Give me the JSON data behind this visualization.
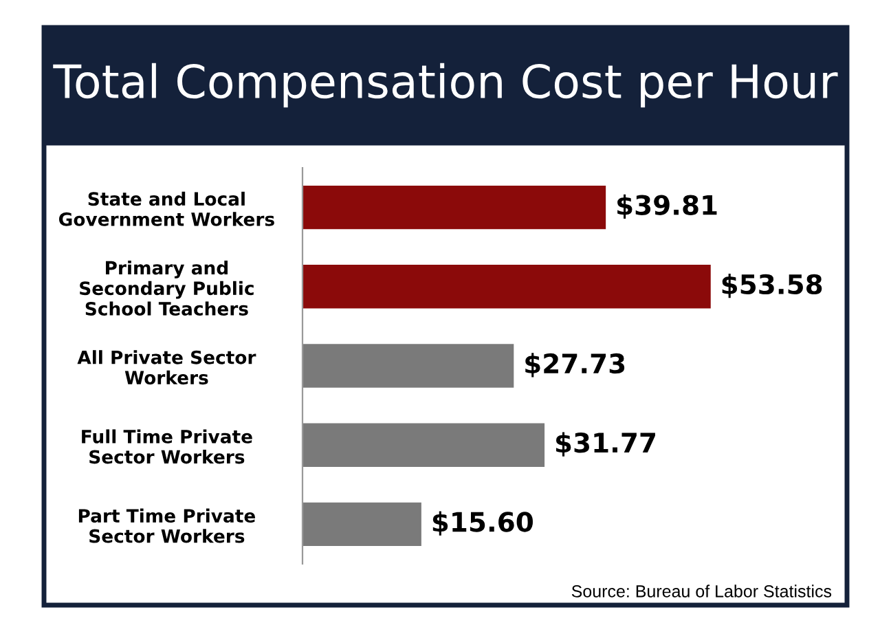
{
  "chart_data": {
    "type": "bar",
    "orientation": "horizontal",
    "title": "Total Compensation Cost per Hour",
    "categories": [
      "State and Local\nGovernment Workers",
      "Primary and\nSecondary Public\nSchool Teachers",
      "All Private Sector\nWorkers",
      "Full Time Private\nSector Workers",
      "Part Time Private\nSector Workers"
    ],
    "values": [
      39.81,
      53.58,
      27.73,
      31.77,
      15.6
    ],
    "colors": [
      "#8b0a0a",
      "#8b0a0a",
      "#7a7a7a",
      "#7a7a7a",
      "#7a7a7a"
    ],
    "value_labels": [
      "$39.81",
      "$53.58",
      "$27.73",
      "$31.77",
      "$15.60"
    ],
    "annotations": [
      "Source: Bureau of Labor Statistics"
    ],
    "grid": false,
    "legend": false
  }
}
